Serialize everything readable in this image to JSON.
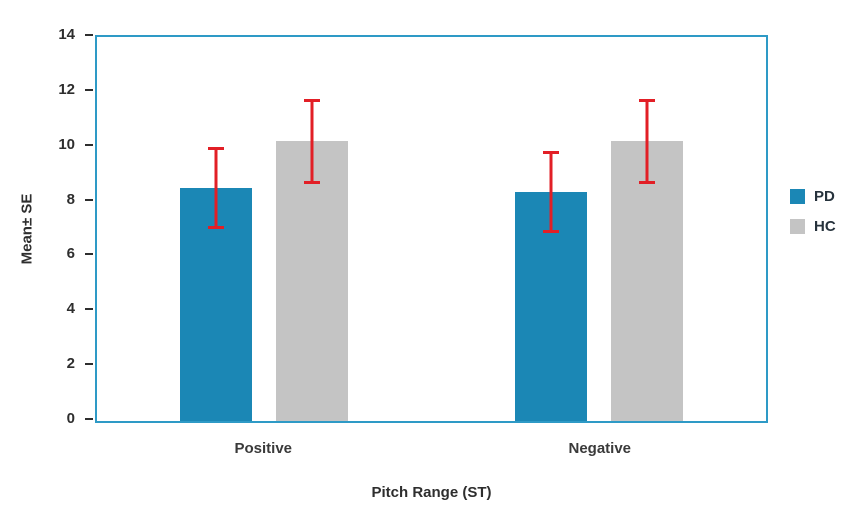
{
  "chart_data": {
    "type": "bar",
    "title": "",
    "categories": [
      "Positive",
      "Negative"
    ],
    "series": [
      {
        "name": "PD",
        "color": "#1b87b5",
        "values": [
          8.5,
          8.35
        ],
        "errors": [
          1.5,
          1.5
        ]
      },
      {
        "name": "HC",
        "color": "#c4c4c4",
        "values": [
          10.2,
          10.2
        ],
        "errors": [
          1.55,
          1.55
        ]
      }
    ],
    "xlabel": "Pitch Range (ST)",
    "ylabel": "Mean± SE",
    "ylim": [
      0,
      14
    ],
    "yticks": [
      0,
      2,
      4,
      6,
      8,
      10,
      12,
      14
    ],
    "error_color": "#e21f26",
    "axis_border_color": "#2e9ac6",
    "grid": false,
    "legend_position": "right"
  }
}
